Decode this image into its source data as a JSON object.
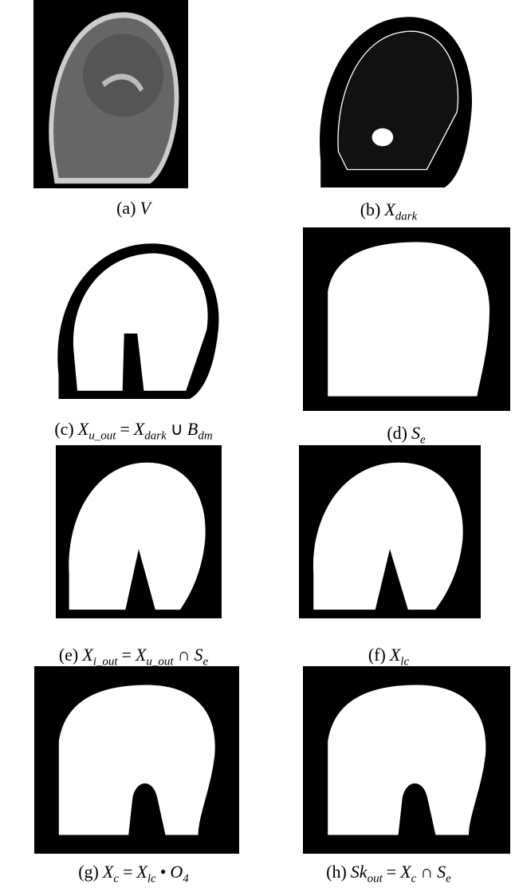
{
  "panels": [
    {
      "caption": [
        {
          "text": "(a)"
        },
        {
          "math": "V"
        }
      ]
    },
    {
      "caption": [
        {
          "text": "(b)"
        },
        {
          "math": "X",
          "sub": "dark"
        }
      ]
    },
    {
      "caption": [
        {
          "text": "(c)"
        },
        {
          "math": "X",
          "sub": "u_out"
        },
        {
          "text": "="
        },
        {
          "math": "X",
          "sub": "dark"
        },
        {
          "text": "∪"
        },
        {
          "math": "B",
          "sub": "dm"
        }
      ]
    },
    {
      "caption": [
        {
          "text": "(d)"
        },
        {
          "math": "S",
          "sub": "e"
        }
      ]
    },
    {
      "caption": [
        {
          "text": "(e)"
        },
        {
          "math": "X",
          "sub": "i_out"
        },
        {
          "text": "="
        },
        {
          "math": "X",
          "sub": "u_out"
        },
        {
          "text": "∩"
        },
        {
          "math": "S",
          "sub": "e"
        }
      ]
    },
    {
      "caption": [
        {
          "text": "(f)"
        },
        {
          "math": "X",
          "sub": "lc"
        }
      ]
    },
    {
      "caption": [
        {
          "text": "(g)"
        },
        {
          "math": "X",
          "sub": "c"
        },
        {
          "text": "="
        },
        {
          "math": "X",
          "sub": "lc"
        },
        {
          "text": "•"
        },
        {
          "math": "O",
          "sub": "4"
        }
      ]
    },
    {
      "caption": [
        {
          "text": "(h)"
        },
        {
          "math": "Sk",
          "sub": "out"
        },
        {
          "text": "="
        },
        {
          "math": "X",
          "sub": "c"
        },
        {
          "text": "∩"
        },
        {
          "math": "S",
          "sub": "e"
        }
      ]
    }
  ]
}
